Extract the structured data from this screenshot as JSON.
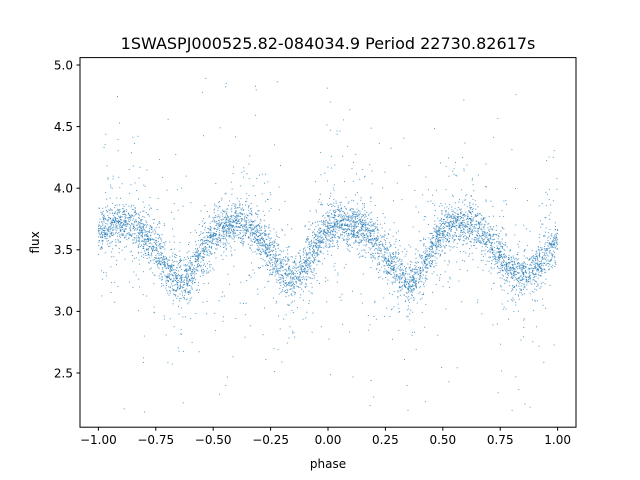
{
  "chart_data": {
    "type": "scatter",
    "title": "1SWASPJ000525.82-084034.9 Period 22730.82617s",
    "xlabel": "phase",
    "ylabel": "flux",
    "xlim": [
      -1.08,
      1.08
    ],
    "ylim": [
      2.06,
      5.06
    ],
    "xticks": [
      -1.0,
      -0.75,
      -0.5,
      -0.25,
      0.0,
      0.25,
      0.5,
      0.75,
      1.0
    ],
    "xtick_labels": [
      "−1.00",
      "−0.75",
      "−0.50",
      "−0.25",
      "0.00",
      "0.25",
      "0.50",
      "0.75",
      "1.00"
    ],
    "yticks": [
      2.5,
      3.0,
      3.5,
      4.0,
      4.5,
      5.0
    ],
    "ytick_labels": [
      "2.5",
      "3.0",
      "3.5",
      "4.0",
      "4.5",
      "5.0"
    ],
    "grid": false,
    "legend": false,
    "marker_color": "#1f77b4",
    "series": [
      {
        "x": [
          -1.0,
          -0.95,
          -0.9,
          -0.85,
          -0.8,
          -0.75,
          -0.7,
          -0.65,
          -0.6,
          -0.55,
          -0.5,
          -0.45,
          -0.4,
          -0.35,
          -0.3,
          -0.25,
          -0.2,
          -0.15,
          -0.1,
          -0.05,
          0.0,
          0.05,
          0.1,
          0.15,
          0.2,
          0.25,
          0.3,
          0.35,
          0.4,
          0.45,
          0.5,
          0.55,
          0.6,
          0.65,
          0.7,
          0.75,
          0.8,
          0.85,
          0.9,
          0.95,
          1.0
        ],
        "y": [
          3.65,
          3.7,
          3.72,
          3.7,
          3.62,
          3.5,
          3.35,
          3.22,
          3.3,
          3.48,
          3.62,
          3.7,
          3.72,
          3.7,
          3.6,
          3.47,
          3.33,
          3.25,
          3.35,
          3.55,
          3.68,
          3.72,
          3.7,
          3.68,
          3.58,
          3.45,
          3.33,
          3.22,
          3.3,
          3.5,
          3.65,
          3.7,
          3.72,
          3.68,
          3.58,
          3.45,
          3.33,
          3.28,
          3.35,
          3.45,
          3.58
        ]
      }
    ]
  }
}
